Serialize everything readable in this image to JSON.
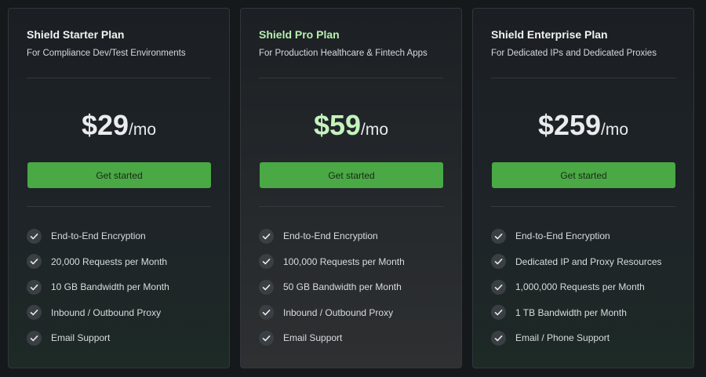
{
  "plans": [
    {
      "title": "Shield Starter Plan",
      "subtitle": "For Compliance Dev/Test Environments",
      "price": "$29",
      "period": "/mo",
      "button": "Get started",
      "features": [
        "End-to-End Encryption",
        "20,000 Requests per Month",
        "10 GB Bandwidth per Month",
        "Inbound / Outbound Proxy",
        "Email Support"
      ]
    },
    {
      "title": "Shield Pro Plan",
      "subtitle": "For Production Healthcare & Fintech Apps",
      "price": "$59",
      "period": "/mo",
      "button": "Get started",
      "features": [
        "End-to-End Encryption",
        "100,000 Requests per Month",
        "50 GB Bandwidth per Month",
        "Inbound / Outbound Proxy",
        "Email Support"
      ]
    },
    {
      "title": "Shield Enterprise Plan",
      "subtitle": "For Dedicated IPs and Dedicated Proxies",
      "price": "$259",
      "period": "/mo",
      "button": "Get started",
      "features": [
        "End-to-End Encryption",
        "Dedicated IP and Proxy Resources",
        "1,000,000 Requests per Month",
        "1 TB Bandwidth per Month",
        "Email / Phone Support"
      ]
    }
  ]
}
